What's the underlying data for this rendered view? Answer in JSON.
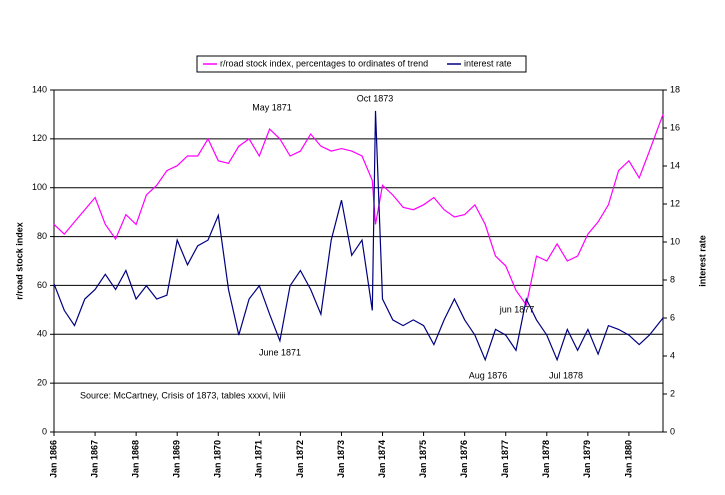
{
  "chart_data": {
    "type": "line",
    "y_label": "r/road stock index",
    "y2_label": "interest rate",
    "xlim": [
      1866,
      1880.83
    ],
    "xticks": [
      {
        "value": 1866,
        "label": "Jan 1866"
      },
      {
        "value": 1867,
        "label": "Jan 1867"
      },
      {
        "value": 1868,
        "label": "Jan 1868"
      },
      {
        "value": 1869,
        "label": "Jan 1869"
      },
      {
        "value": 1870,
        "label": "Jan 1870"
      },
      {
        "value": 1871,
        "label": "Jan 1871"
      },
      {
        "value": 1872,
        "label": "Jan 1872"
      },
      {
        "value": 1873,
        "label": "Jan 1873"
      },
      {
        "value": 1874,
        "label": "Jan 1874"
      },
      {
        "value": 1875,
        "label": "Jan 1875"
      },
      {
        "value": 1876,
        "label": "Jan 1876"
      },
      {
        "value": 1877,
        "label": "Jan 1877"
      },
      {
        "value": 1878,
        "label": "Jan 1878"
      },
      {
        "value": 1879,
        "label": "Jan 1879"
      },
      {
        "value": 1880,
        "label": "Jan 1880"
      }
    ],
    "ylim": [
      0,
      140
    ],
    "yticks": [
      0,
      20,
      40,
      60,
      80,
      100,
      120,
      140
    ],
    "y2lim": [
      0,
      18
    ],
    "y2ticks": [
      0,
      2,
      4,
      6,
      8,
      10,
      12,
      14,
      16,
      18
    ],
    "grid": true,
    "legend": "top",
    "x": [
      1866,
      1866.25,
      1866.5,
      1866.75,
      1867,
      1867.25,
      1867.5,
      1867.75,
      1868,
      1868.25,
      1868.5,
      1868.75,
      1869,
      1869.25,
      1869.5,
      1869.75,
      1870,
      1870.25,
      1870.5,
      1870.75,
      1871,
      1871.25,
      1871.5,
      1871.75,
      1872,
      1872.25,
      1872.5,
      1872.75,
      1873,
      1873.25,
      1873.5,
      1873.75,
      1873.83,
      1874,
      1874.25,
      1874.5,
      1874.75,
      1875,
      1875.25,
      1875.5,
      1875.75,
      1876,
      1876.25,
      1876.5,
      1876.75,
      1877,
      1877.25,
      1877.5,
      1877.75,
      1878,
      1878.25,
      1878.5,
      1878.75,
      1879,
      1879.25,
      1879.5,
      1879.75,
      1880,
      1880.25,
      1880.5,
      1880.83
    ],
    "series": [
      {
        "name": "r/road stock index, percentages to ordinates of trend",
        "color": "#ff00ff",
        "values": [
          85,
          81,
          86,
          91,
          96,
          85,
          79,
          89,
          85,
          97,
          101,
          107,
          109,
          113,
          113,
          120,
          111,
          110,
          117,
          120,
          113,
          124,
          120,
          113,
          115,
          122,
          117,
          115,
          116,
          115,
          113,
          103,
          85,
          101,
          97,
          92,
          91,
          93,
          96,
          91,
          88,
          89,
          93,
          85,
          72,
          68,
          58,
          52,
          72,
          70,
          77,
          70,
          72,
          81,
          86,
          93,
          107,
          111,
          104,
          115,
          130
        ]
      },
      {
        "name": "interest rate",
        "color": "#000080",
        "axis": "y2",
        "values": [
          7.8,
          6.4,
          5.6,
          7.0,
          7.5,
          8.3,
          7.5,
          8.5,
          7.0,
          7.7,
          7.0,
          7.2,
          10.1,
          8.8,
          9.8,
          10.1,
          11.4,
          7.5,
          5.1,
          7.0,
          7.7,
          6.2,
          4.8,
          7.7,
          8.5,
          7.5,
          6.2,
          10.1,
          12.2,
          9.3,
          10.1,
          6.4,
          16.9,
          7.0,
          5.9,
          5.6,
          5.9,
          5.6,
          4.6,
          5.9,
          7.0,
          5.9,
          5.1,
          3.8,
          5.4,
          5.1,
          4.3,
          7.0,
          5.9,
          5.1,
          3.8,
          5.4,
          4.3,
          5.4,
          4.1,
          5.6,
          5.4,
          5.1,
          4.6,
          5.1,
          6.0
        ]
      }
    ],
    "annotations": [
      "May 1871",
      "Oct 1873",
      "June 1871",
      "Aug 1876",
      "jun 1877",
      "Jul 1878"
    ],
    "source": "Source: McCartney, Crisis of 1873, tables xxxvi, lviii"
  }
}
